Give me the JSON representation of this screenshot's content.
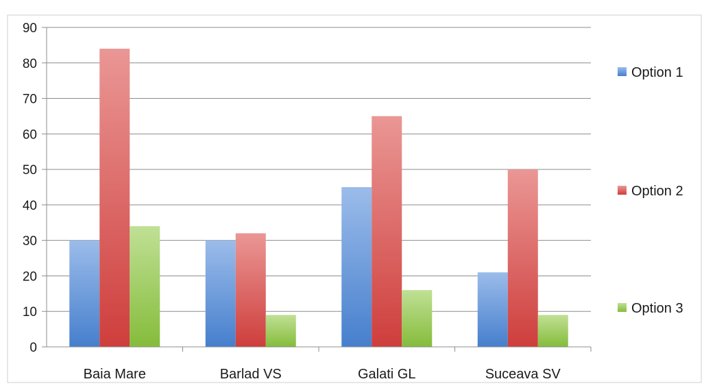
{
  "chart_data": {
    "type": "bar",
    "title": "",
    "xlabel": "",
    "ylabel": "",
    "categories": [
      "Baia Mare",
      "Barlad VS",
      "Galati GL",
      "Suceava SV"
    ],
    "series": [
      {
        "name": "Option 1",
        "values": [
          30,
          30,
          45,
          21
        ],
        "color": "#4a86d8"
      },
      {
        "name": "Option 2",
        "values": [
          84,
          32,
          65,
          50
        ],
        "color": "#d9413f"
      },
      {
        "name": "Option 3",
        "values": [
          34,
          9,
          16,
          9
        ],
        "color": "#8cc63e"
      }
    ],
    "ylim": [
      0,
      90
    ],
    "yticks": [
      0,
      10,
      20,
      30,
      40,
      50,
      60,
      70,
      80,
      90
    ],
    "grid": true,
    "legend": "right"
  }
}
